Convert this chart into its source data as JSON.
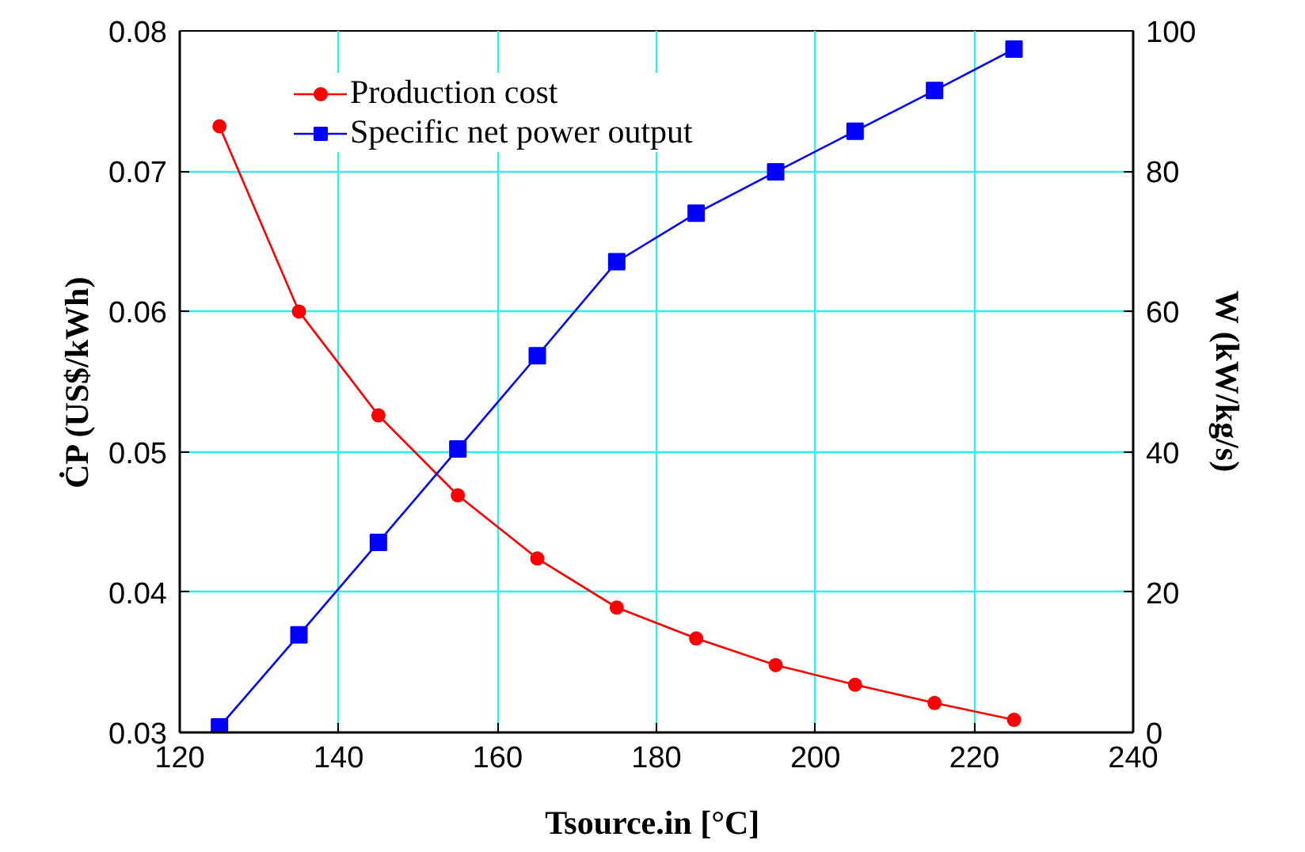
{
  "chart_data": {
    "type": "line",
    "xlabel": "Tsource.in  [°C]",
    "ylabel": "ĊP (US$/kWh)",
    "y2label": "W (kW/kg/s)",
    "x": [
      125,
      135,
      145,
      155,
      165,
      175,
      185,
      195,
      205,
      215,
      225
    ],
    "series": [
      {
        "name": "Production cost",
        "color": "#ff0000",
        "marker": "circle",
        "values": [
          0.0732,
          0.06,
          0.0526,
          0.0469,
          0.0424,
          0.0389,
          0.0367,
          0.0348,
          0.0334,
          0.0321,
          0.0309
        ]
      },
      {
        "name": "Specific net power output",
        "color": "#0000ff",
        "marker": "square",
        "axis": "y2",
        "values": [
          0.8,
          13.9,
          27.1,
          40.4,
          53.7,
          67.1,
          74.0,
          79.9,
          85.7,
          91.5,
          97.4
        ]
      }
    ],
    "xlim": [
      120,
      240
    ],
    "xticks": [
      120,
      140,
      160,
      180,
      200,
      220,
      240
    ],
    "ylim": [
      0.03,
      0.08
    ],
    "yticks": [
      {
        "value": 0.03,
        "label": "0.03"
      },
      {
        "value": 0.04,
        "label": "0.04"
      },
      {
        "value": 0.05,
        "label": "0.05"
      },
      {
        "value": 0.06,
        "label": "0.06"
      },
      {
        "value": 0.07,
        "label": "0.07"
      },
      {
        "value": 0.08,
        "label": "0.08"
      }
    ],
    "y2lim": [
      0,
      100
    ],
    "y2ticks": [
      0,
      20,
      40,
      60,
      80,
      100
    ],
    "grid": true,
    "legend": "top left",
    "line_style": "solid"
  }
}
